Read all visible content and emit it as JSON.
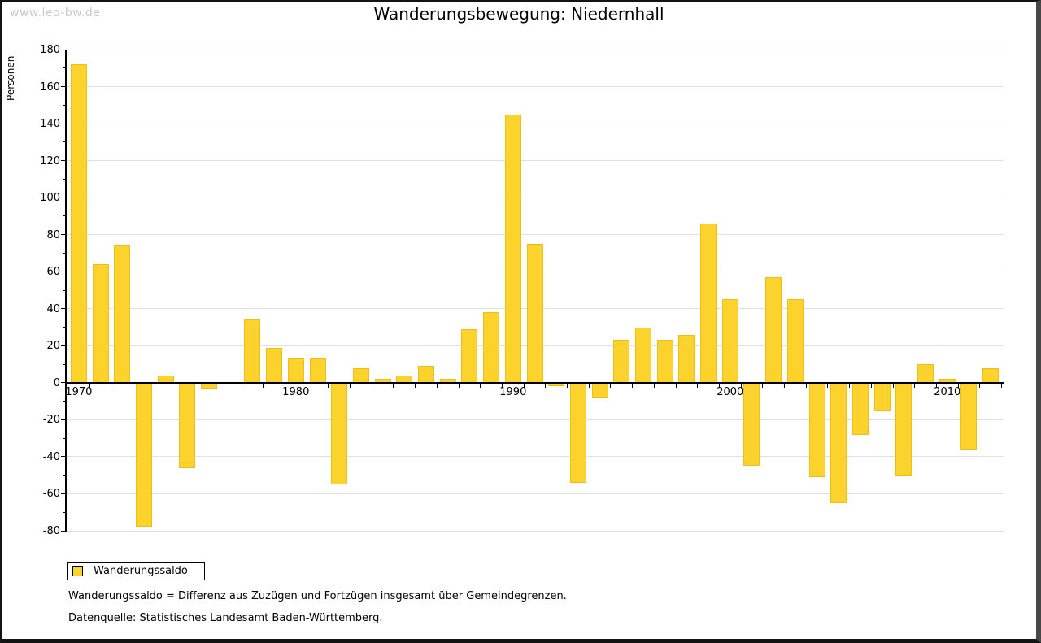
{
  "watermark": "www.leo-bw.de",
  "title": "Wanderungsbewegung: Niedernhall",
  "y_axis_label": "Personen",
  "legend": {
    "label": "Wanderungssaldo",
    "swatch_color": "#FCD32D"
  },
  "footnotes": [
    "Wanderungssaldo = Differenz aus Zuzügen und Fortzügen insgesamt über Gemeindegrenzen.",
    "Datenquelle: Statistisches Landesamt Baden-Württemberg."
  ],
  "colors": {
    "bar": "#FCD32D",
    "bar_border": "#EFBE1D",
    "grid": "#E0E0E0",
    "axis": "#000000",
    "text": "#000000",
    "watermark": "#C6C8CC"
  },
  "chart_data": {
    "type": "bar",
    "title": "Wanderungsbewegung: Niedernhall",
    "xlabel": "",
    "ylabel": "Personen",
    "series_name": "Wanderungssaldo",
    "x": [
      1970,
      1971,
      1972,
      1973,
      1974,
      1975,
      1976,
      1977,
      1978,
      1979,
      1980,
      1981,
      1982,
      1983,
      1984,
      1985,
      1986,
      1987,
      1988,
      1989,
      1990,
      1991,
      1992,
      1993,
      1994,
      1995,
      1996,
      1997,
      1998,
      1999,
      2000,
      2001,
      2002,
      2003,
      2004,
      2005,
      2006,
      2007,
      2008,
      2009,
      2010,
      2011,
      2012
    ],
    "values": [
      172,
      64,
      74,
      -78,
      4,
      -46,
      -3,
      0,
      34,
      19,
      13,
      13,
      -55,
      8,
      2,
      4,
      9,
      2,
      29,
      38,
      145,
      75,
      -2,
      -54,
      -8,
      23,
      30,
      23,
      26,
      86,
      45,
      -45,
      57,
      45,
      -51,
      -65,
      -28,
      -15,
      -50,
      10,
      2,
      -36,
      8
    ],
    "ylim": [
      -80,
      180
    ],
    "ytick_step": 20,
    "ytick_minor_step": 10,
    "ytick_labels": [
      "180",
      "160",
      "140",
      "120",
      "100",
      "80",
      "60",
      "40",
      "20",
      "0",
      "-20",
      "-40",
      "-60",
      "-80"
    ],
    "xtick_labeled_years": [
      1970,
      1980,
      1990,
      2000,
      2010
    ],
    "grid": true,
    "legend_position": "bottom-left"
  }
}
